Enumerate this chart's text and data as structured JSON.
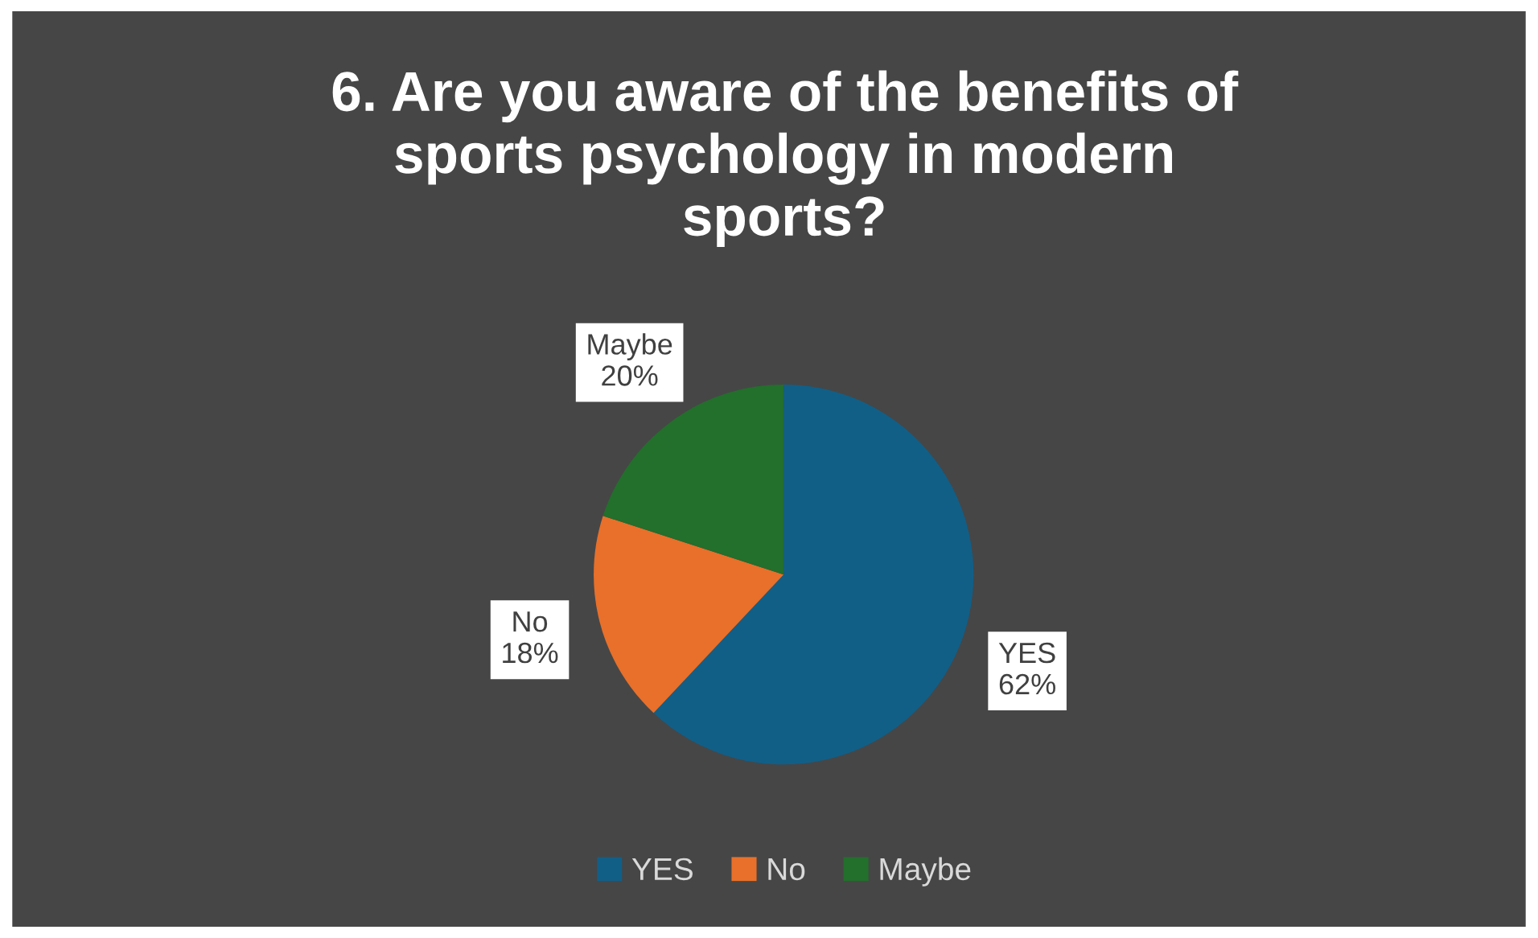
{
  "chart_data": {
    "type": "pie",
    "title": "6. Are you aware of the benefits of\nsports psychology in modern\nsports?",
    "categories": [
      "YES",
      "No",
      "Maybe"
    ],
    "values": [
      62,
      18,
      20
    ],
    "value_labels": [
      "62%",
      "18%",
      "20%"
    ],
    "colors": [
      "#115f87",
      "#e8702a",
      "#236f2c"
    ],
    "legend": "bottom"
  }
}
